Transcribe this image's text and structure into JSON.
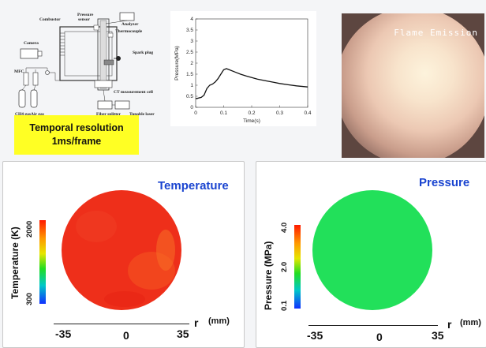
{
  "schematic": {
    "labels": {
      "combustor": "Combustor",
      "pressure_sensor_1": "Pressure",
      "pressure_sensor_2": "sensor",
      "analyzer": "Analyzer",
      "thermocouple": "Thermocouple",
      "camera": "Camera",
      "spark_plug": "Spark plug",
      "mfc": "MFC",
      "ct_cell": "CT measurement cell",
      "ch4_gas": "CH4 gas",
      "air_gas": "Air gas",
      "fiber_splitter": "Fiber splitter",
      "tunable_laser": "Tunable laser"
    }
  },
  "banner": {
    "line1": "Temporal resolution",
    "line2": "1ms/frame"
  },
  "chart_data": {
    "type": "line",
    "xlabel": "Time(s)",
    "ylabel": "Pressure(MPa)",
    "xlim": [
      0,
      0.4
    ],
    "ylim": [
      0,
      4
    ],
    "xticks": [
      "0",
      "0.1",
      "0.2",
      "0.3",
      "0.4"
    ],
    "yticks": [
      "0",
      "0.5",
      "1",
      "1.5",
      "2",
      "2.5",
      "3",
      "3.5",
      "4"
    ],
    "series": [
      {
        "x": [
          0,
          0.005,
          0.01,
          0.02,
          0.03,
          0.04,
          0.05,
          0.06,
          0.07,
          0.08,
          0.09,
          0.1,
          0.11,
          0.12,
          0.14,
          0.16,
          0.18,
          0.2,
          0.22,
          0.25,
          0.28,
          0.3,
          0.33,
          0.36,
          0.4
        ],
        "values": [
          0.4,
          0.4,
          0.42,
          0.45,
          0.55,
          0.85,
          1.0,
          1.05,
          1.15,
          1.3,
          1.5,
          1.7,
          1.75,
          1.7,
          1.6,
          1.5,
          1.42,
          1.35,
          1.28,
          1.2,
          1.13,
          1.08,
          1.02,
          0.97,
          0.92
        ],
        "color": "#111111"
      }
    ]
  },
  "photo": {
    "label": "Flame Emission"
  },
  "temperature_panel": {
    "title": "Temperature",
    "colorbar_label": "Temperature (K)",
    "colorbar_max": "2000",
    "colorbar_min": "300",
    "field_color": "#ee2f1a",
    "axis_left": "-35",
    "axis_center": "0",
    "axis_right": "35",
    "axis_var": "r",
    "axis_unit": "(mm)"
  },
  "pressure_panel": {
    "title": "Pressure",
    "colorbar_label": "Pressure (MPa)",
    "colorbar_max": "4.0",
    "colorbar_mid": "2.0",
    "colorbar_min": "0.1",
    "field_color": "#22e05a",
    "axis_left": "-35",
    "axis_center": "0",
    "axis_right": "35",
    "axis_var": "r",
    "axis_unit": "(mm)"
  }
}
